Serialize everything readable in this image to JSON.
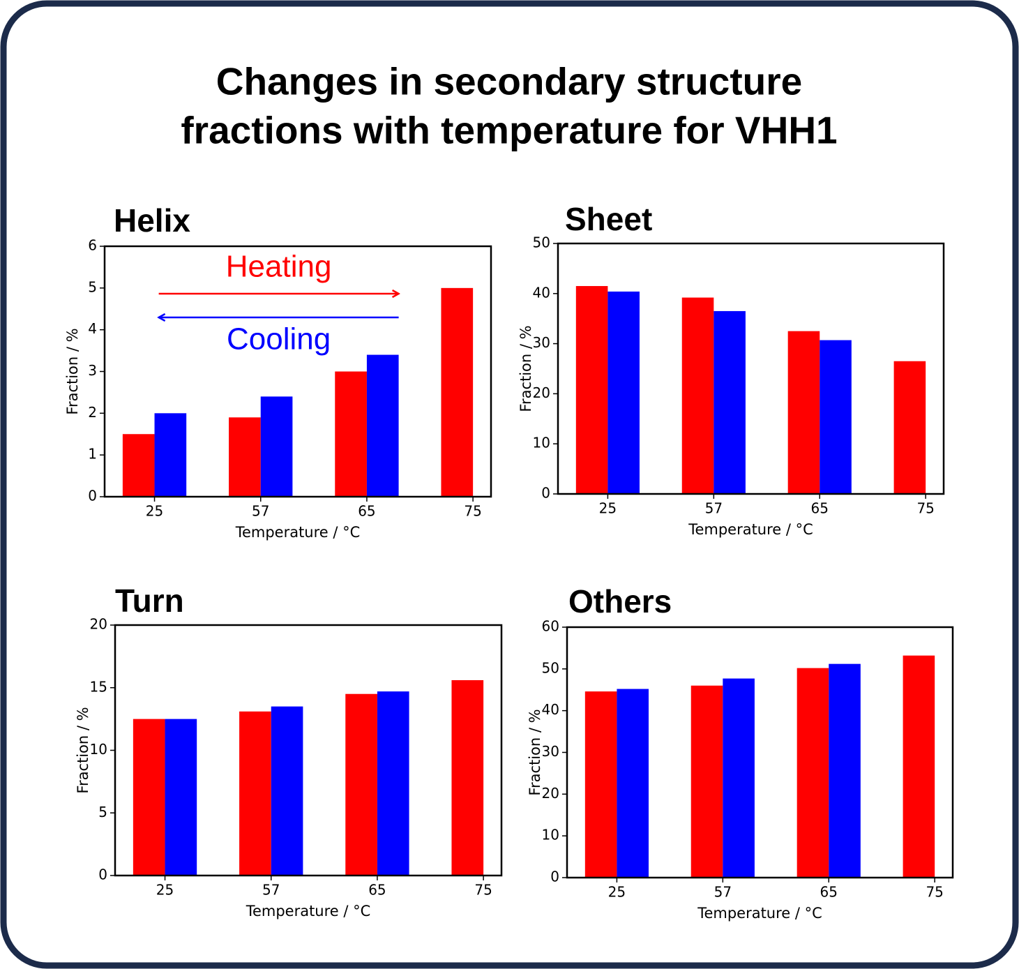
{
  "title": [
    "Changes in secondary structure",
    "fractions with temperature for VHH1"
  ],
  "chart_data": [
    {
      "type": "bar",
      "title": "Helix",
      "categories": [
        "25",
        "57",
        "65",
        "75"
      ],
      "series": [
        {
          "name": "Heating",
          "color": "#ff0000",
          "values": [
            1.5,
            1.9,
            3.0,
            5.0
          ]
        },
        {
          "name": "Cooling",
          "color": "#0000ff",
          "values": [
            2.0,
            2.4,
            3.4,
            null
          ]
        }
      ],
      "xlabel": "Temperature / °C",
      "ylabel": "Fraction / %",
      "ylim": [
        0,
        6
      ],
      "yticks": [
        0,
        1,
        2,
        3,
        4,
        5,
        6
      ]
    },
    {
      "type": "bar",
      "title": "Sheet",
      "categories": [
        "25",
        "57",
        "65",
        "75"
      ],
      "series": [
        {
          "color": "#ff0000",
          "values": [
            41.5,
            39.2,
            32.5,
            26.5
          ]
        },
        {
          "color": "#0000ff",
          "values": [
            40.4,
            36.5,
            30.7,
            null
          ]
        }
      ],
      "xlabel": "Temperature / °C",
      "ylabel": "Fraction / %",
      "ylim": [
        0,
        50
      ],
      "yticks": [
        0,
        10,
        20,
        30,
        40,
        50
      ]
    },
    {
      "type": "bar",
      "title": "Turn",
      "categories": [
        "25",
        "57",
        "65",
        "75"
      ],
      "series": [
        {
          "color": "#ff0000",
          "values": [
            12.5,
            13.1,
            14.5,
            15.6
          ]
        },
        {
          "color": "#0000ff",
          "values": [
            12.5,
            13.5,
            14.7,
            null
          ]
        }
      ],
      "xlabel": "Temperature / °C",
      "ylabel": "Fraction / %",
      "ylim": [
        0,
        20
      ],
      "yticks": [
        0,
        5,
        10,
        15,
        20
      ]
    },
    {
      "type": "bar",
      "title": "Others",
      "categories": [
        "25",
        "57",
        "65",
        "75"
      ],
      "series": [
        {
          "color": "#ff0000",
          "values": [
            44.6,
            46.0,
            50.2,
            53.2
          ]
        },
        {
          "color": "#0000ff",
          "values": [
            45.2,
            47.7,
            51.2,
            null
          ]
        }
      ],
      "xlabel": "Temperature / °C",
      "ylabel": "Fraction / %",
      "ylim": [
        0,
        60
      ],
      "yticks": [
        0,
        10,
        20,
        30,
        40,
        50,
        60
      ]
    }
  ]
}
